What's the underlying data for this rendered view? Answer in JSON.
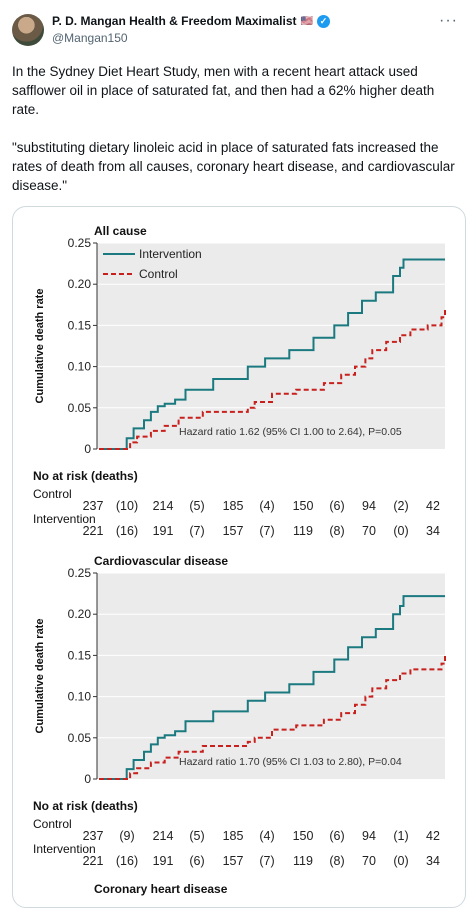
{
  "author": {
    "display_name": "P. D. Mangan Health & Freedom Maximalist",
    "flag": "🇺🇸",
    "handle": "@Mangan150",
    "verified_icon": "verified-badge-icon",
    "more_icon": "more-options-icon"
  },
  "tweet": {
    "paragraph1": "In the Sydney Diet Heart Study, men with a recent heart attack used safflower oil in place of saturated fat, and then had a 62% higher death rate.",
    "paragraph2": "\"substituting dietary linoleic acid in place of saturated fats increased the rates of death from all causes, coronary heart disease, and cardiovascular disease.\""
  },
  "colors": {
    "intervention": "#1a7a80",
    "control": "#c8201c",
    "plot_bg": "#ebebeb"
  },
  "chart_data": [
    {
      "type": "line",
      "title": "All cause",
      "ylabel": "Cumulative death rate",
      "xlabel": "",
      "ylim": [
        0,
        0.25
      ],
      "yticks": [
        "0",
        "0.05",
        "0.10",
        "0.15",
        "0.20",
        "0.25"
      ],
      "grid": true,
      "legend": "top-left",
      "series": [
        {
          "name": "Intervention",
          "x": [
            0,
            0.08,
            0.1,
            0.13,
            0.15,
            0.17,
            0.19,
            0.22,
            0.25,
            0.33,
            0.43,
            0.48,
            0.55,
            0.62,
            0.68,
            0.72,
            0.76,
            0.8,
            0.85,
            0.87,
            0.88,
            1.0
          ],
          "values": [
            0,
            0.013,
            0.025,
            0.035,
            0.045,
            0.052,
            0.055,
            0.06,
            0.072,
            0.085,
            0.1,
            0.11,
            0.12,
            0.135,
            0.15,
            0.165,
            0.18,
            0.19,
            0.21,
            0.22,
            0.23,
            0.23
          ]
        },
        {
          "name": "Control",
          "x": [
            0,
            0.09,
            0.11,
            0.15,
            0.19,
            0.23,
            0.3,
            0.43,
            0.45,
            0.5,
            0.57,
            0.65,
            0.7,
            0.74,
            0.77,
            0.79,
            0.83,
            0.87,
            0.9,
            0.95,
            0.99,
            1.0
          ],
          "values": [
            0,
            0.008,
            0.015,
            0.022,
            0.028,
            0.038,
            0.045,
            0.05,
            0.057,
            0.067,
            0.072,
            0.08,
            0.09,
            0.1,
            0.11,
            0.12,
            0.13,
            0.138,
            0.145,
            0.15,
            0.16,
            0.17
          ]
        }
      ],
      "annotation": "Hazard ratio 1.62 (95% CI 1.00 to 2.64), P=0.05",
      "risk_table": {
        "heading": "No at risk (deaths)",
        "groups": [
          {
            "label": "Control",
            "values": [
              "237",
              "(10)",
              "214",
              "(5)",
              "185",
              "(4)",
              "150",
              "(6)",
              "94",
              "(2)",
              "42"
            ]
          },
          {
            "label": "Intervention",
            "values": [
              "221",
              "(16)",
              "191",
              "(7)",
              "157",
              "(7)",
              "119",
              "(8)",
              "70",
              "(0)",
              "34"
            ]
          }
        ]
      }
    },
    {
      "type": "line",
      "title": "Cardiovascular disease",
      "ylabel": "Cumulative death rate",
      "xlabel": "",
      "ylim": [
        0,
        0.25
      ],
      "yticks": [
        "0",
        "0.05",
        "0.10",
        "0.15",
        "0.20",
        "0.25"
      ],
      "grid": true,
      "legend": "none",
      "series": [
        {
          "name": "Intervention",
          "x": [
            0,
            0.08,
            0.1,
            0.13,
            0.15,
            0.17,
            0.19,
            0.22,
            0.25,
            0.33,
            0.43,
            0.48,
            0.55,
            0.62,
            0.68,
            0.72,
            0.76,
            0.8,
            0.85,
            0.87,
            0.88,
            1.0
          ],
          "values": [
            0,
            0.012,
            0.023,
            0.033,
            0.042,
            0.05,
            0.053,
            0.058,
            0.07,
            0.082,
            0.095,
            0.105,
            0.115,
            0.13,
            0.145,
            0.16,
            0.172,
            0.182,
            0.2,
            0.21,
            0.222,
            0.222
          ]
        },
        {
          "name": "Control",
          "x": [
            0,
            0.09,
            0.11,
            0.15,
            0.19,
            0.23,
            0.3,
            0.43,
            0.45,
            0.5,
            0.57,
            0.65,
            0.7,
            0.74,
            0.77,
            0.79,
            0.83,
            0.87,
            0.9,
            0.95,
            0.99,
            1.0
          ],
          "values": [
            0,
            0.007,
            0.013,
            0.02,
            0.026,
            0.033,
            0.04,
            0.045,
            0.05,
            0.06,
            0.065,
            0.072,
            0.08,
            0.09,
            0.1,
            0.11,
            0.12,
            0.128,
            0.133,
            0.133,
            0.14,
            0.15
          ]
        }
      ],
      "annotation": "Hazard ratio 1.70 (95% CI 1.03 to 2.80), P=0.04",
      "risk_table": {
        "heading": "No at risk (deaths)",
        "groups": [
          {
            "label": "Control",
            "values": [
              "237",
              "(9)",
              "214",
              "(5)",
              "185",
              "(4)",
              "150",
              "(6)",
              "94",
              "(1)",
              "42"
            ]
          },
          {
            "label": "Intervention",
            "values": [
              "221",
              "(16)",
              "191",
              "(6)",
              "157",
              "(7)",
              "119",
              "(8)",
              "70",
              "(0)",
              "34"
            ]
          }
        ]
      }
    },
    {
      "type": "line",
      "title": "Coronary heart disease"
    }
  ]
}
